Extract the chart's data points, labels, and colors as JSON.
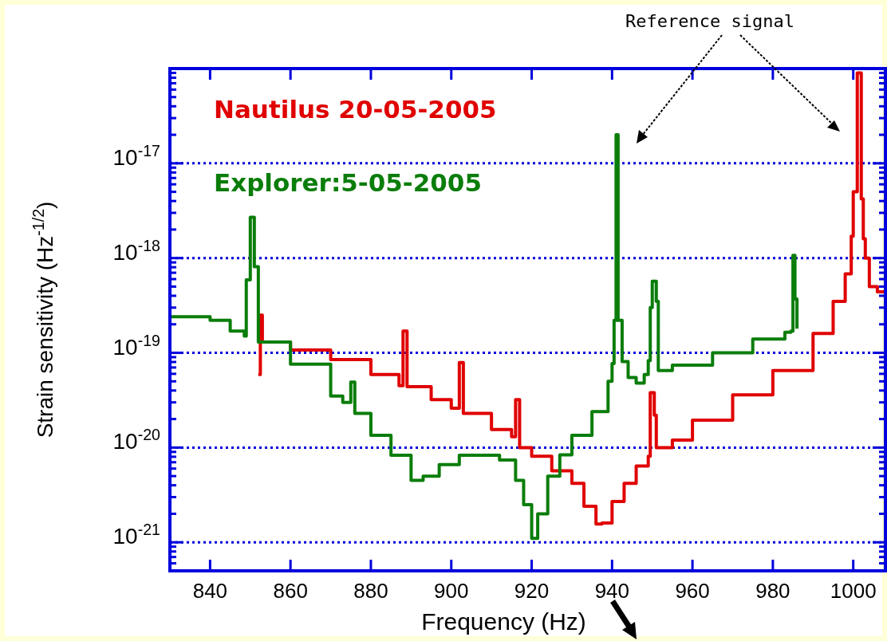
{
  "chart_data": {
    "type": "step",
    "xlabel": "Frequency (Hz)",
    "ylabel": "Strain sensitivity (Hz$^{-1/2}$)",
    "xlim": [
      830,
      1008
    ],
    "xticks": [
      840,
      860,
      880,
      900,
      920,
      940,
      960,
      980,
      1000
    ],
    "ylim": [
      5e-22,
      1e-16
    ],
    "log": "y",
    "yticks": [
      {
        "value": 1e-21,
        "label": "10$^{-21}$"
      },
      {
        "value": 1e-20,
        "label": "10$^{-20}$"
      },
      {
        "value": 1e-19,
        "label": "10$^{-19}$"
      },
      {
        "value": 1e-18,
        "label": "10$^{-18}$"
      },
      {
        "value": 1e-17,
        "label": "10$^{-17}$"
      }
    ],
    "grid": "y",
    "legend": "top left",
    "line_style": "solid",
    "annotations": [
      "Reference signal"
    ],
    "series": [
      {
        "name": "Nautilus 20-05-2005",
        "color": "#e00000",
        "x": [
          852,
          852.5,
          853,
          860,
          870,
          880,
          887,
          888,
          889,
          895,
          900,
          902,
          903,
          910,
          915,
          916,
          917,
          920,
          925,
          930,
          933,
          936,
          937.5,
          940,
          943,
          946,
          949,
          949.5,
          950.5,
          951,
          955,
          960,
          970,
          980,
          990,
          995,
          998,
          999.5,
          1000,
          1001,
          1002,
          1002.5,
          1003,
          1004,
          1006,
          1008
        ],
        "values": [
          5.9e-20,
          2.5e-19,
          1.3e-19,
          1.07e-19,
          8.5e-20,
          5.9e-20,
          4.5e-20,
          1.7e-19,
          4.4e-20,
          3.2e-20,
          2.6e-20,
          7.9e-20,
          2.3e-20,
          1.55e-20,
          1.3e-20,
          3.2e-20,
          1e-20,
          8.1e-21,
          5.7e-21,
          4.2e-21,
          2.4e-21,
          1.56e-21,
          1.6e-21,
          2.7e-21,
          4.2e-21,
          6.4e-21,
          8.1e-21,
          3.8e-20,
          2.2e-20,
          1e-20,
          1.2e-20,
          1.95e-20,
          3.6e-20,
          6.5e-20,
          1.6e-19,
          3.5e-19,
          6.8e-19,
          1.7e-18,
          5e-18,
          9e-17,
          4.2e-18,
          1.6e-18,
          1e-18,
          5e-19,
          4.4e-19,
          3.9e-19
        ]
      },
      {
        "name": "Explorer:5-05-2005",
        "color": "#0a7d0a",
        "x": [
          830,
          840,
          845,
          848.5,
          849,
          850,
          851,
          852,
          860,
          870,
          873,
          875,
          876,
          880,
          885,
          890,
          893,
          897,
          902,
          908,
          912,
          916,
          918,
          920,
          921.5,
          924,
          927,
          930,
          935,
          939,
          940,
          940.5,
          941,
          941.5,
          942.5,
          944,
          946,
          948,
          949,
          949.5,
          950,
          951,
          951.5,
          955,
          965,
          975,
          983,
          984.5,
          985,
          985.5,
          986
        ],
        "values": [
          2.4e-19,
          2.2e-19,
          1.7e-19,
          1.5e-19,
          5.9e-19,
          2.7e-18,
          8.1e-19,
          1.3e-19,
          7.6e-20,
          3.5e-20,
          3e-20,
          4.9e-20,
          2.3e-20,
          1.35e-20,
          8.3e-21,
          4.5e-21,
          5e-21,
          6.6e-21,
          8.3e-21,
          8.3e-21,
          7.4e-21,
          4.5e-21,
          2.5e-21,
          1.1e-21,
          2e-21,
          5e-21,
          8.4e-21,
          1.35e-20,
          2.4e-20,
          5e-20,
          7.7e-20,
          2.2e-19,
          2e-17,
          2.2e-19,
          8.1e-20,
          5.5e-20,
          4.8e-20,
          5.9e-20,
          8.3e-20,
          3e-19,
          5.7e-19,
          3.5e-19,
          6.5e-20,
          7.4e-20,
          1e-19,
          1.4e-19,
          1.65e-19,
          1.7e-19,
          1.07e-18,
          3.7e-19,
          1.8e-19
        ]
      }
    ]
  }
}
